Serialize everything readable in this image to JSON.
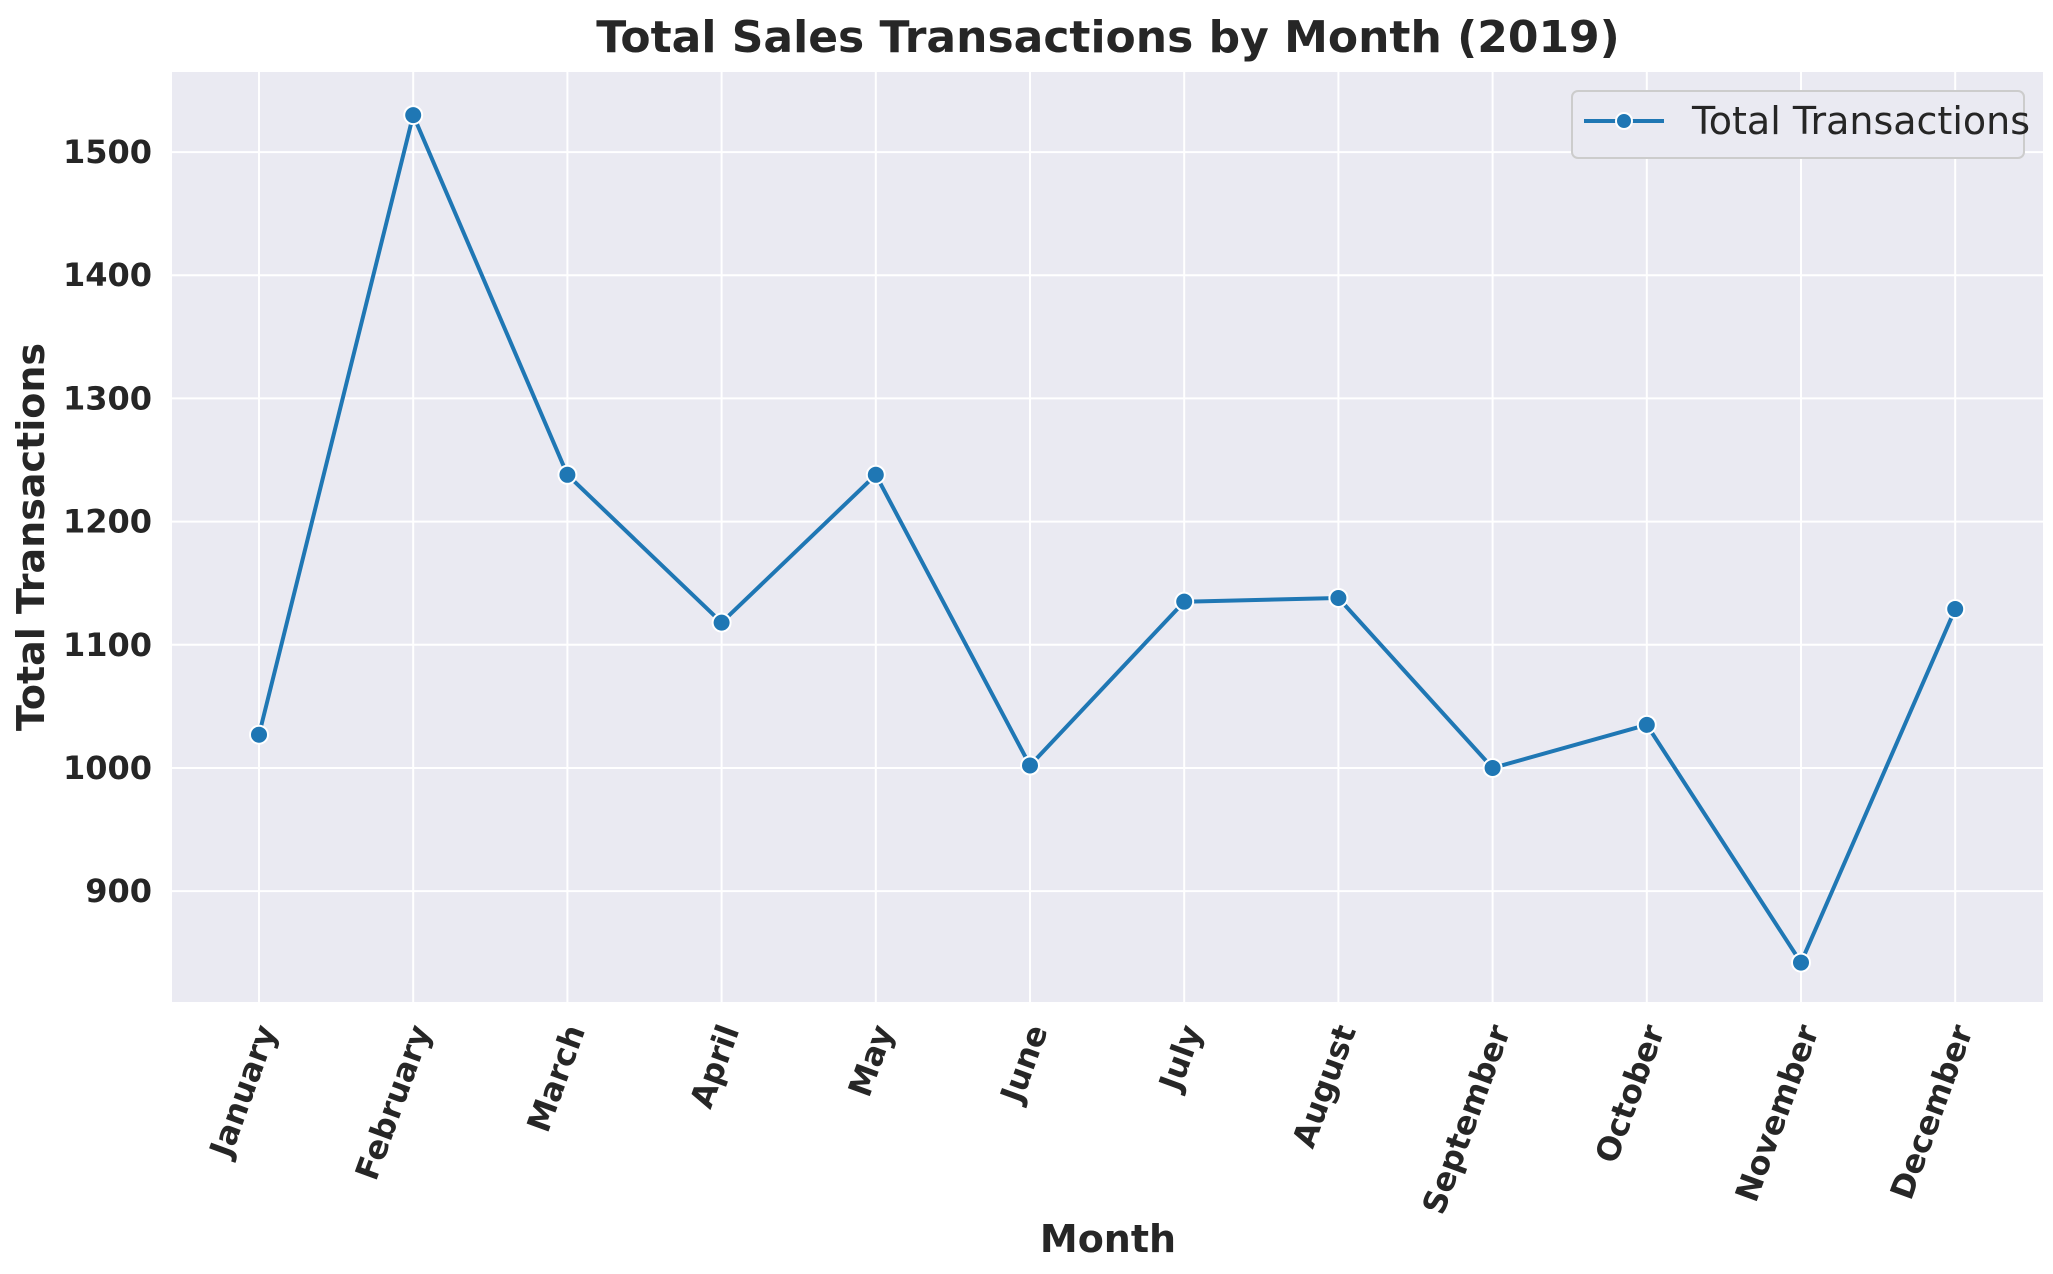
{
  "chart_data": {
    "type": "line",
    "title": "Total Sales Transactions by Month (2019)",
    "xlabel": "Month",
    "ylabel": "Total Transactions",
    "categories": [
      "January",
      "February",
      "March",
      "April",
      "May",
      "June",
      "July",
      "August",
      "September",
      "October",
      "November",
      "December"
    ],
    "series": [
      {
        "name": "Total Transactions",
        "values": [
          1027,
          1530,
          1238,
          1118,
          1238,
          1002,
          1135,
          1138,
          1000,
          1035,
          842,
          1129
        ]
      }
    ],
    "yticks": [
      900,
      1000,
      1100,
      1200,
      1300,
      1400,
      1500
    ],
    "ylim": [
      810,
      1565
    ],
    "grid": true,
    "legend_position": "top-right",
    "colors": {
      "line": "#1f77b4",
      "background": "#eaeaf2",
      "grid": "#ffffff",
      "text": "#262626"
    }
  }
}
